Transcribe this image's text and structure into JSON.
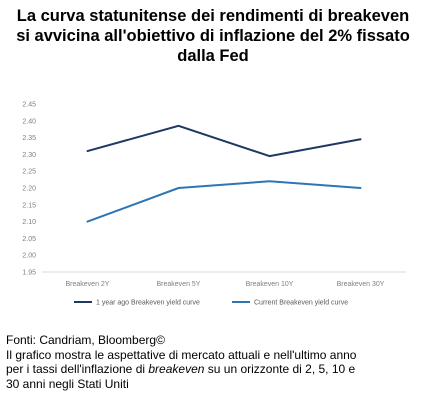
{
  "title": {
    "line1": "La curva statunitense dei rendimenti di breakeven",
    "line2": "si avvicina all'obiettivo di inflazione del 2% fissato",
    "line3": "dalla Fed"
  },
  "chart_data": {
    "type": "line",
    "categories": [
      "Breakeven 2Y",
      "Breakeven 5Y",
      "Breakeven 10Y",
      "Breakeven 30Y"
    ],
    "series": [
      {
        "name": "1 year ago Breakeven yield curve",
        "values": [
          2.31,
          2.385,
          2.295,
          2.345
        ],
        "color": "#1f3864"
      },
      {
        "name": "Current Breakeven yield curve",
        "values": [
          2.1,
          2.2,
          2.22,
          2.2
        ],
        "color": "#2e75b6"
      }
    ],
    "ylim": [
      1.95,
      2.45
    ],
    "yticks": [
      "1.95",
      "2.00",
      "2.05",
      "2.10",
      "2.15",
      "2.20",
      "2.25",
      "2.30",
      "2.35",
      "2.40",
      "2.45"
    ],
    "grid": false,
    "legend_position": "bottom"
  },
  "footer": {
    "source": "Fonti: Candriam, Bloomberg©",
    "note_line1": "Il grafico mostra le aspettative di mercato attuali e nell'ultimo anno",
    "note_line2_pre": "per i tassi dell'inflazione di ",
    "note_line2_em": "breakeven",
    "note_line2_post": " su un orizzonte di 2, 5, 10 e",
    "note_line3": "30 anni negli Stati Uniti"
  }
}
